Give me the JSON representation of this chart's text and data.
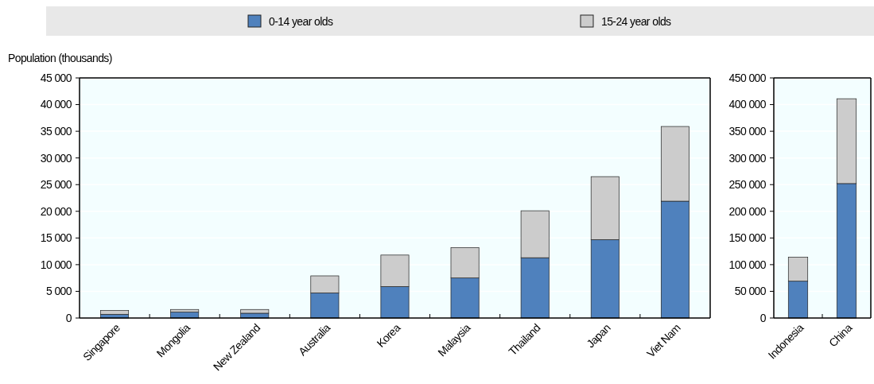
{
  "chart_data": [
    {
      "type": "bar",
      "stacked": true,
      "ylabel": "Population (thousands)",
      "legend": "top",
      "grid": "y",
      "categories": [
        "Singapore",
        "Mongolia",
        "New Zealand",
        "Australia",
        "Korea",
        "Malaysia",
        "Thailand",
        "Japan",
        "Viet Nam"
      ],
      "series": [
        {
          "name": "0-14 year olds",
          "color": "#4f81bd",
          "values": [
            700,
            1100,
            900,
            4700,
            5900,
            7500,
            11300,
            14700,
            21900
          ]
        },
        {
          "name": "15-24 year olds",
          "color": "#cccccc",
          "values": [
            700,
            500,
            700,
            3200,
            5900,
            5700,
            8800,
            11800,
            14000
          ]
        }
      ],
      "ylim": [
        0,
        45000
      ],
      "yticks": [
        0,
        {
          "value": 5000,
          "label": "5 000"
        },
        {
          "value": 10000,
          "label": "10 000"
        },
        {
          "value": 15000,
          "label": "15 000"
        },
        {
          "value": 20000,
          "label": "20 000"
        },
        {
          "value": 25000,
          "label": "25 000"
        },
        {
          "value": 30000,
          "label": "30 000"
        },
        {
          "value": 35000,
          "label": "35 000"
        },
        {
          "value": 40000,
          "label": "40 000"
        },
        {
          "value": 45000,
          "label": "45 000"
        }
      ]
    },
    {
      "type": "bar",
      "stacked": true,
      "grid": "y",
      "categories": [
        "Indonesia",
        "China"
      ],
      "series": [
        {
          "color": "#4f81bd",
          "values": [
            69000,
            252000
          ]
        },
        {
          "color": "#cccccc",
          "values": [
            45000,
            159000
          ]
        }
      ],
      "ylim": [
        0,
        450000
      ],
      "yticks": [
        0,
        {
          "value": 50000,
          "label": "50 000"
        },
        {
          "value": 100000,
          "label": "100 000"
        },
        {
          "value": 150000,
          "label": "150 000"
        },
        {
          "value": 200000,
          "label": "200 000"
        },
        {
          "value": 250000,
          "label": "250 000"
        },
        {
          "value": 300000,
          "label": "300 000"
        },
        {
          "value": 350000,
          "label": "350 000"
        },
        {
          "value": 400000,
          "label": "400 000"
        },
        {
          "value": 450000,
          "label": "450 000"
        }
      ]
    }
  ]
}
